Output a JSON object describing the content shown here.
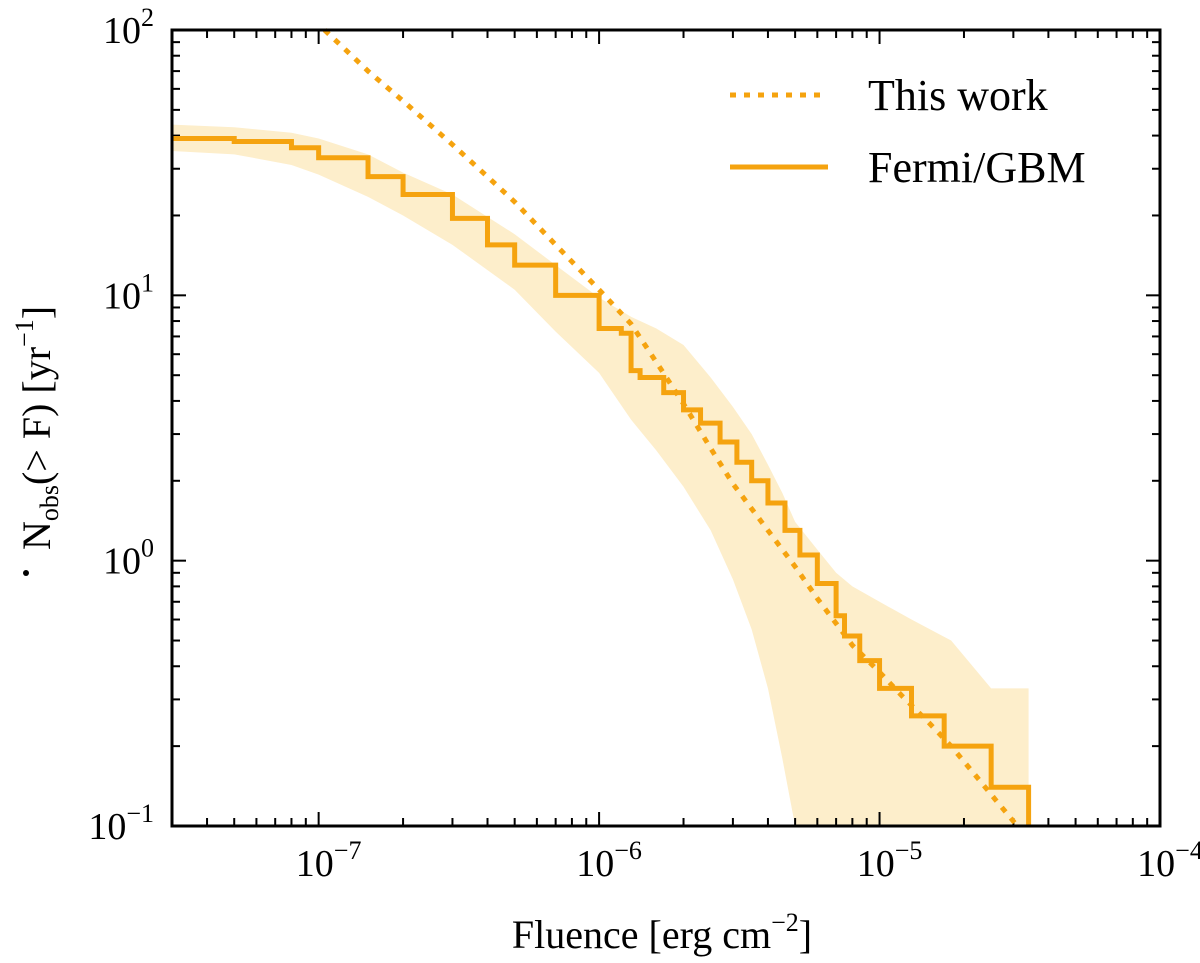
{
  "chart_data": {
    "type": "line",
    "title": "",
    "xlabel": "Fluence [erg cm⁻²]",
    "ylabel": "Ṅobs(> F) [yr⁻¹]",
    "x_scale": "log",
    "y_scale": "log",
    "xlim": [
      3e-08,
      0.0001
    ],
    "ylim": [
      0.1,
      100
    ],
    "x_ticks": [
      {
        "value": 1e-07,
        "base": "10",
        "exp": "−7"
      },
      {
        "value": 1e-06,
        "base": "10",
        "exp": "−6"
      },
      {
        "value": 1e-05,
        "base": "10",
        "exp": "−5"
      },
      {
        "value": 0.0001,
        "base": "10",
        "exp": "−4"
      }
    ],
    "y_ticks": [
      {
        "value": 0.1,
        "base": "10",
        "exp": "−1"
      },
      {
        "value": 1,
        "base": "10",
        "exp": "0"
      },
      {
        "value": 10,
        "base": "10",
        "exp": "1"
      },
      {
        "value": 100,
        "base": "10",
        "exp": "2"
      }
    ],
    "xlabel_parts": {
      "main": "Fluence [erg cm",
      "exp": "−2",
      "close": "]"
    },
    "ylabel_parts": {
      "n": "N",
      "sub": "obs",
      "mid": "(> F) [yr",
      "exp": "−1",
      "close": "]"
    },
    "legend": {
      "position": "top-right"
    },
    "colors": {
      "line": "#f5a30f",
      "band": "#fdeecb"
    },
    "series": [
      {
        "name": "This work",
        "style": "dotted",
        "x": [
          1.05e-07,
          1.5e-07,
          2e-07,
          3e-07,
          4e-07,
          5e-07,
          7e-07,
          1e-06,
          1.3e-06,
          1.6e-06,
          2e-06,
          2.5e-06,
          3e-06,
          4e-06,
          5e-06,
          6e-06,
          7e-06,
          8e-06,
          1e-05,
          1.2e-05,
          1.5e-05,
          1.8e-05,
          2.2e-05,
          2.6e-05,
          3.1e-05
        ],
        "values": [
          100,
          70,
          54,
          37,
          28,
          22.5,
          15.5,
          10.5,
          7.8,
          5.6,
          3.9,
          2.65,
          1.95,
          1.3,
          0.95,
          0.72,
          0.58,
          0.48,
          0.38,
          0.31,
          0.245,
          0.2,
          0.155,
          0.125,
          0.1
        ]
      },
      {
        "name": "Fermi/GBM",
        "style": "solid",
        "x": [
          3e-08,
          5e-08,
          8e-08,
          1e-07,
          1.5e-07,
          2e-07,
          3e-07,
          4e-07,
          5e-07,
          7e-07,
          1e-06,
          1.2e-06,
          1.3e-06,
          1.4e-06,
          1.7e-06,
          2e-06,
          2.3e-06,
          2.7e-06,
          3.1e-06,
          3.5e-06,
          4e-06,
          4.6e-06,
          5.2e-06,
          6e-06,
          7e-06,
          7.5e-06,
          8.5e-06,
          1e-05,
          1.3e-05,
          1.7e-05,
          2.5e-05,
          3.4e-05
        ],
        "values": [
          39,
          38,
          36,
          33,
          28,
          24,
          19.5,
          15.5,
          13,
          10,
          7.5,
          7.2,
          5.2,
          4.9,
          4.3,
          3.7,
          3.3,
          2.8,
          2.35,
          2.0,
          1.65,
          1.3,
          1.05,
          0.82,
          0.62,
          0.52,
          0.42,
          0.33,
          0.26,
          0.2,
          0.14,
          0.1
        ]
      }
    ],
    "band": {
      "name": "Fermi/GBM uncertainty",
      "x": [
        3e-08,
        5e-08,
        8e-08,
        1e-07,
        1.5e-07,
        2e-07,
        3e-07,
        5e-07,
        7e-07,
        1e-06,
        1.3e-06,
        1.6e-06,
        2e-06,
        2.5e-06,
        3e-06,
        3.5e-06,
        4e-06,
        4.5e-06,
        5e-06,
        6e-06,
        7e-06,
        8e-06,
        1e-05,
        1.3e-05,
        1.8e-05,
        2.5e-05,
        3.4e-05
      ],
      "lower": [
        35,
        34,
        31,
        28.5,
        23.5,
        20,
        15.5,
        10.5,
        7.3,
        5.1,
        3.4,
        2.6,
        1.9,
        1.3,
        0.85,
        0.55,
        0.33,
        0.18,
        0.1,
        0.1,
        0.1,
        0.1,
        0.1,
        0.1,
        0.1,
        0.1,
        0.1
      ],
      "upper": [
        44,
        43,
        41,
        39,
        34,
        29,
        24,
        17,
        13,
        9.8,
        8.3,
        7.5,
        6.5,
        4.9,
        3.8,
        3.0,
        2.3,
        1.8,
        1.4,
        1.1,
        0.9,
        0.8,
        0.7,
        0.6,
        0.5,
        0.33,
        0.33
      ]
    }
  }
}
